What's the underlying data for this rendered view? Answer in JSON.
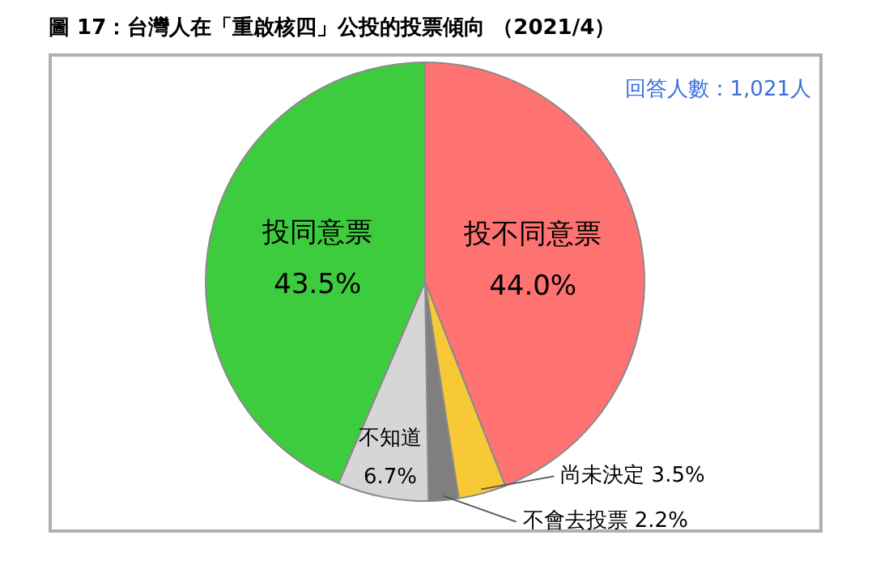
{
  "chart_data": {
    "type": "pie",
    "title": "圖 17：台灣人在「重啟核四」公投的投票傾向 （2021/4）",
    "categories": [
      "投不同意票",
      "尚未決定",
      "不會去投票",
      "不知道",
      "投同意票"
    ],
    "values": [
      44.0,
      3.5,
      2.2,
      6.7,
      43.5
    ],
    "colors": [
      "#ff7272",
      "#f7c936",
      "#7f7f7f",
      "#d6d6d6",
      "#3dcc3d"
    ],
    "value_labels": [
      "44.0%",
      "3.5%",
      "2.2%",
      "6.7%",
      "43.5%"
    ],
    "annotations": [
      "回答人數：1,021人"
    ],
    "legend": false
  }
}
